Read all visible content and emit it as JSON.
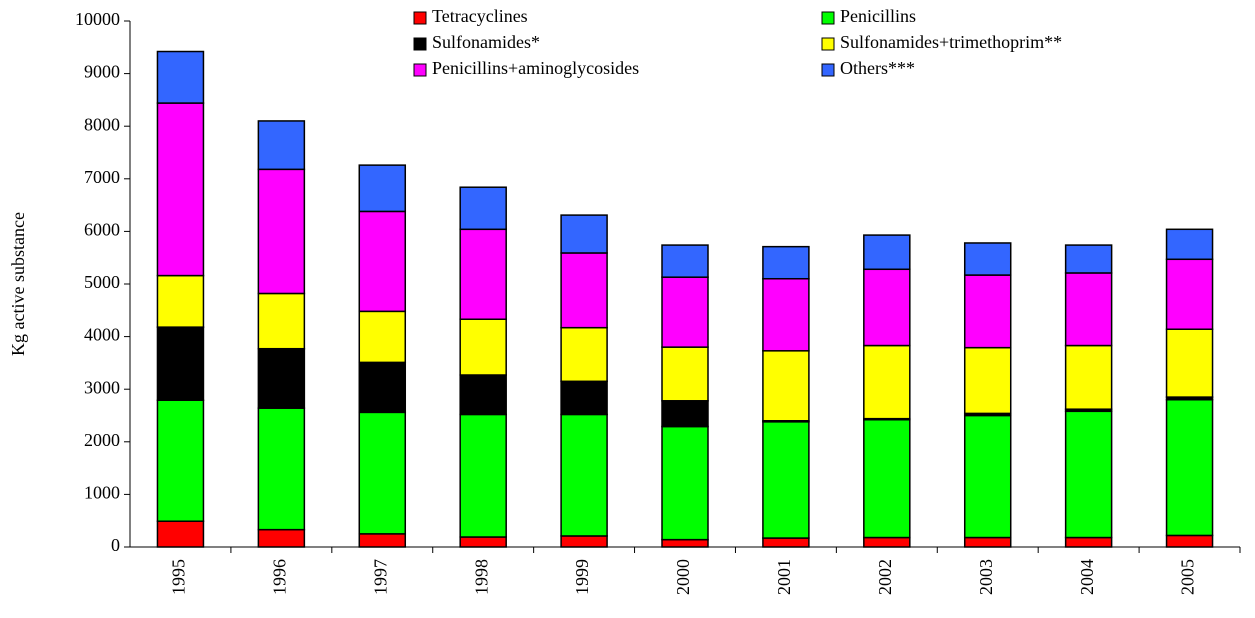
{
  "chart_data": {
    "type": "bar",
    "stacked": true,
    "y_label": "Kg active substance",
    "categories": [
      "1995",
      "1996",
      "1997",
      "1998",
      "1999",
      "2000",
      "2001",
      "2002",
      "2003",
      "2004",
      "2005"
    ],
    "series": [
      {
        "name": "Tetracyclines",
        "color": "#ff0000",
        "values": [
          490,
          330,
          250,
          190,
          210,
          140,
          170,
          180,
          180,
          180,
          220
        ]
      },
      {
        "name": "Penicillins",
        "color": "#00ff00",
        "values": [
          2300,
          2310,
          2310,
          2330,
          2310,
          2150,
          2210,
          2240,
          2320,
          2400,
          2580
        ]
      },
      {
        "name": "Sulfonamides*",
        "color": "#000000",
        "values": [
          1390,
          1130,
          950,
          750,
          630,
          490,
          20,
          20,
          40,
          40,
          50
        ]
      },
      {
        "name": "Sulfonamides+trimethoprim**",
        "color": "#ffff00",
        "values": [
          980,
          1050,
          970,
          1060,
          1020,
          1020,
          1330,
          1390,
          1250,
          1210,
          1290
        ]
      },
      {
        "name": "Penicillins+aminoglycosides",
        "color": "#ff00ff",
        "values": [
          3280,
          2360,
          1900,
          1710,
          1420,
          1330,
          1370,
          1450,
          1380,
          1380,
          1330
        ]
      },
      {
        "name": "Others***",
        "color": "#3366ff",
        "values": [
          980,
          920,
          880,
          800,
          720,
          610,
          610,
          650,
          610,
          530,
          570
        ]
      }
    ],
    "ylim": [
      0,
      10000
    ],
    "yticks": [
      0,
      1000,
      2000,
      3000,
      4000,
      5000,
      6000,
      7000,
      8000,
      9000,
      10000
    ],
    "legend": "top"
  }
}
